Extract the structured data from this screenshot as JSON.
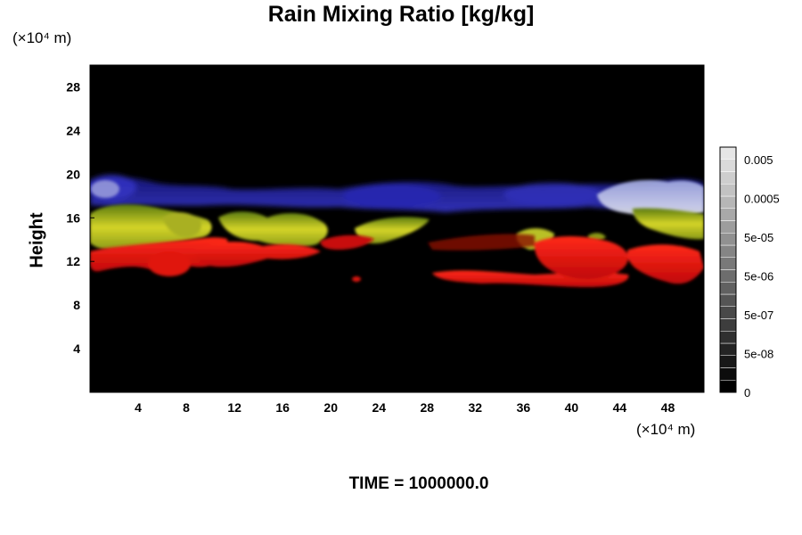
{
  "chart_data": {
    "type": "heatmap",
    "title": "Rain Mixing Ratio [kg/kg]",
    "xlabel": "",
    "ylabel": "Height",
    "x_unit_label": "(×10⁴ m)",
    "y_unit_label": "(×10⁴ m)",
    "xlim": [
      0,
      51
    ],
    "ylim": [
      0,
      30
    ],
    "x_ticks": [
      "4",
      "8",
      "12",
      "16",
      "20",
      "24",
      "28",
      "32",
      "36",
      "40",
      "44",
      "48"
    ],
    "y_ticks": [
      "4",
      "8",
      "12",
      "16",
      "20",
      "24",
      "28"
    ],
    "colorbar": {
      "labels": [
        "0.005",
        "0.0005",
        "5e-05",
        "5e-06",
        "5e-07",
        "5e-08",
        "0"
      ],
      "levels": 20
    },
    "background": "#000000",
    "layers": [
      {
        "name": "blue",
        "color": "#2c2ccc",
        "y_range": [
          16.5,
          20
        ]
      },
      {
        "name": "yellow",
        "color": "#c8c820",
        "y_range": [
          13.5,
          16.5
        ]
      },
      {
        "name": "red",
        "color": "#e01010",
        "y_range": [
          10,
          14
        ]
      },
      {
        "name": "white-blue",
        "color": "#c8cce8",
        "y_range": [
          16.5,
          19.5
        ]
      }
    ]
  },
  "footer": {
    "time_text": "TIME = 1000000.0"
  }
}
